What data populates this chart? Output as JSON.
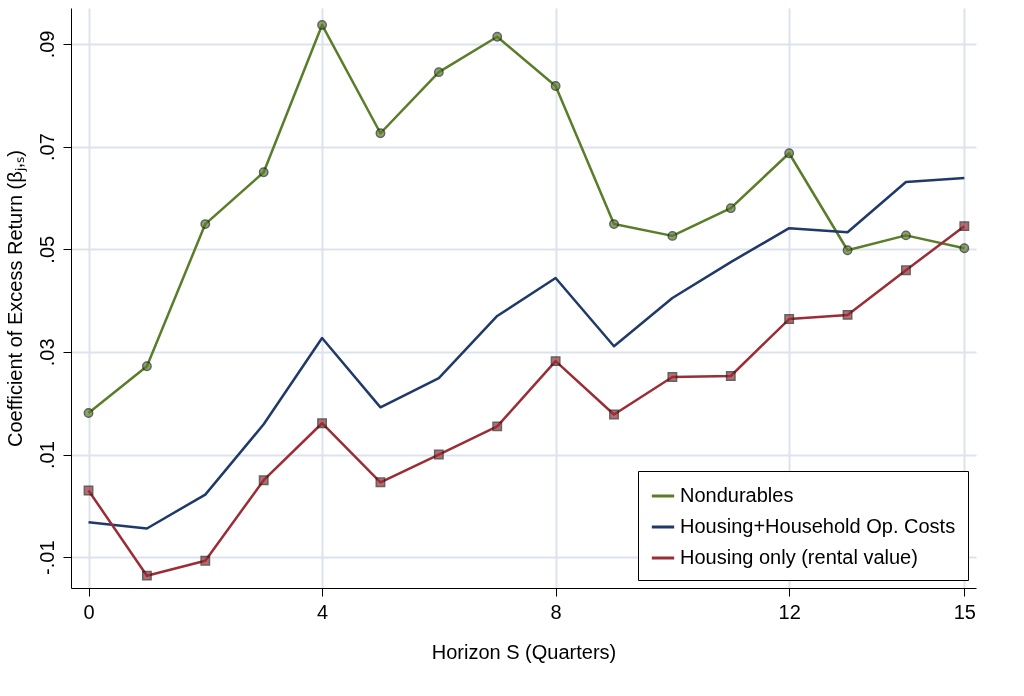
{
  "chart_data": {
    "type": "line",
    "xlabel": "Horizon S (Quarters)",
    "ylabel": "Coefficient of Excess Return (βⱼ,ₛ)",
    "x": [
      0,
      1,
      2,
      3,
      4,
      5,
      6,
      7,
      8,
      9,
      10,
      11,
      12,
      13,
      14,
      15
    ],
    "series": [
      {
        "name": "Nondurables",
        "color": "#5a7d2a",
        "marker": "circle",
        "values": [
          0.0181,
          0.0272,
          0.0549,
          0.065,
          0.0937,
          0.0726,
          0.0845,
          0.0914,
          0.0818,
          0.0549,
          0.0526,
          0.058,
          0.0687,
          0.0498,
          0.0527,
          0.0502
        ]
      },
      {
        "name": "Housing+Household Op. Costs",
        "color": "#1f3a68",
        "marker": "none",
        "values": [
          -0.0032,
          -0.0044,
          0.0022,
          0.0159,
          0.0327,
          0.0192,
          0.0249,
          0.037,
          0.0444,
          0.0311,
          0.0405,
          0.0475,
          0.0541,
          0.0533,
          0.0631,
          0.0639
        ]
      },
      {
        "name": "Housing only (rental value)",
        "color": "#9b2d35",
        "marker": "square",
        "values": [
          0.003,
          -0.0136,
          -0.0107,
          0.005,
          0.0161,
          0.0046,
          0.01,
          0.0155,
          0.0282,
          0.0178,
          0.0251,
          0.0253,
          0.0364,
          0.0372,
          0.0459,
          0.0545
        ]
      }
    ],
    "xlim": [
      -0.3,
      15.2
    ],
    "xticks": [
      0,
      4,
      8,
      12,
      15
    ],
    "ylim": [
      -0.016,
      0.097
    ],
    "yticks": [
      {
        "value": -0.01,
        "label": "-.01"
      },
      {
        "value": 0.01,
        "label": ".01"
      },
      {
        "value": 0.03,
        "label": ".03"
      },
      {
        "value": 0.05,
        "label": ".05"
      },
      {
        "value": 0.07,
        "label": ".07"
      },
      {
        "value": 0.09,
        "label": ".09"
      }
    ],
    "grid": true,
    "legend": "bottom right"
  }
}
